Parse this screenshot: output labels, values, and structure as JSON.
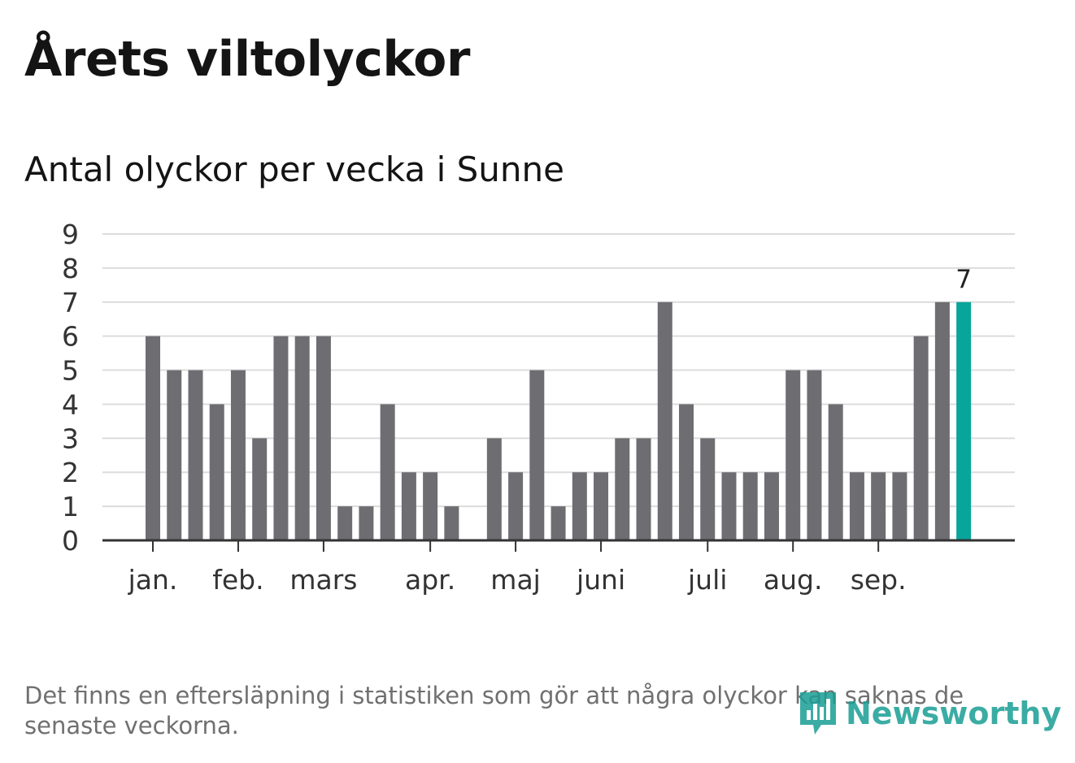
{
  "title": "Årets viltolyckor",
  "subtitle": "Antal olyckor per vecka i Sunne",
  "footnote": "Det finns en eftersläpning i statistiken som gör att några olyckor kan saknas de senaste veckorna.",
  "logo": {
    "text": "Newsworthy",
    "icon": "bar-chart-speech-bubble-icon",
    "color": "#1a9e95"
  },
  "chart_data": {
    "type": "bar",
    "title": "Antal olyckor per vecka i Sunne",
    "xlabel": "",
    "ylabel": "",
    "ylim": [
      0,
      9
    ],
    "yticks": [
      "0",
      "1",
      "2",
      "3",
      "4",
      "5",
      "6",
      "7",
      "8",
      "9"
    ],
    "grid": true,
    "bar_color": "#6e6d72",
    "highlight_color": "#08a59b",
    "values": [
      6,
      5,
      5,
      4,
      5,
      3,
      6,
      6,
      6,
      1,
      1,
      4,
      2,
      2,
      1,
      0,
      3,
      2,
      5,
      1,
      2,
      2,
      3,
      3,
      7,
      4,
      3,
      2,
      2,
      2,
      5,
      5,
      4,
      2,
      2,
      2,
      6,
      7,
      7
    ],
    "highlight_index": 38,
    "highlight_label": "7",
    "month_labels": [
      {
        "label": "jan.",
        "week": 0
      },
      {
        "label": "feb.",
        "week": 4
      },
      {
        "label": "mars",
        "week": 8
      },
      {
        "label": "apr.",
        "week": 13
      },
      {
        "label": "maj",
        "week": 17
      },
      {
        "label": "juni",
        "week": 21
      },
      {
        "label": "juli",
        "week": 26
      },
      {
        "label": "aug.",
        "week": 30
      },
      {
        "label": "sep.",
        "week": 34
      }
    ]
  }
}
